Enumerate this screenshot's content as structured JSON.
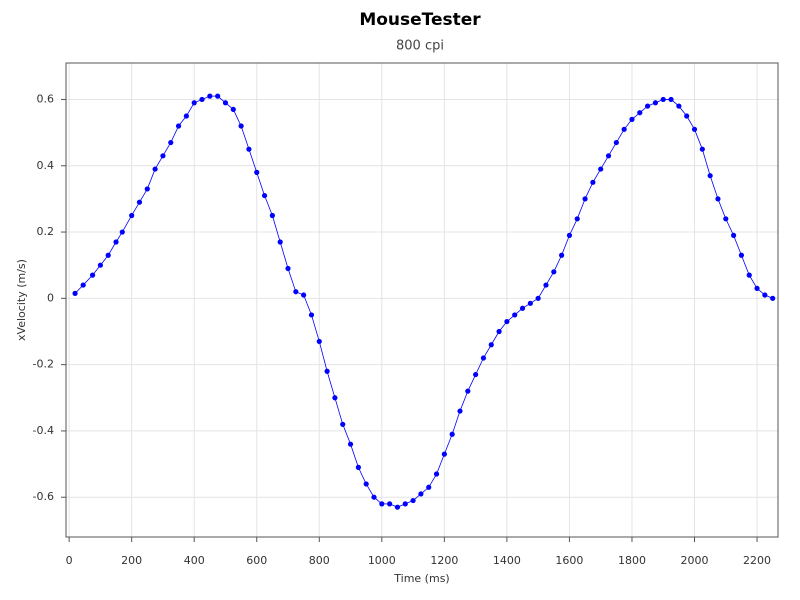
{
  "chart_data": {
    "type": "scatter",
    "title": "MouseTester",
    "subtitle": "800 cpi",
    "x_label": "Time (ms)",
    "y_label": "xVelocity (m/s)",
    "color": "#0000ff",
    "grid": true,
    "line": true,
    "xlim": [
      -10,
      2267
    ],
    "ylim": [
      -0.72,
      0.71
    ],
    "xticks": [
      0,
      200,
      400,
      600,
      800,
      1000,
      1200,
      1400,
      1600,
      1800,
      2000,
      2200
    ],
    "yticks": [
      -0.6,
      -0.4,
      -0.2,
      0,
      0.2,
      0.4,
      0.6
    ],
    "x": [
      19,
      45,
      75,
      100,
      125,
      150,
      170,
      200,
      225,
      250,
      275,
      300,
      325,
      350,
      375,
      400,
      425,
      450,
      475,
      500,
      525,
      550,
      575,
      600,
      625,
      650,
      675,
      700,
      725,
      750,
      775,
      800,
      825,
      850,
      875,
      900,
      925,
      950,
      975,
      1000,
      1025,
      1050,
      1075,
      1100,
      1125,
      1150,
      1175,
      1200,
      1225,
      1250,
      1275,
      1300,
      1325,
      1350,
      1375,
      1400,
      1425,
      1450,
      1475,
      1500,
      1525,
      1550,
      1575,
      1600,
      1625,
      1650,
      1675,
      1700,
      1725,
      1750,
      1775,
      1800,
      1825,
      1850,
      1875,
      1900,
      1925,
      1950,
      1975,
      2000,
      2025,
      2050,
      2075,
      2100,
      2125,
      2150,
      2175,
      2200,
      2225,
      2250
    ],
    "values": [
      0.015,
      0.04,
      0.07,
      0.1,
      0.13,
      0.17,
      0.2,
      0.25,
      0.29,
      0.33,
      0.39,
      0.43,
      0.47,
      0.52,
      0.55,
      0.59,
      0.6,
      0.61,
      0.61,
      0.59,
      0.57,
      0.52,
      0.45,
      0.38,
      0.31,
      0.25,
      0.17,
      0.09,
      0.02,
      0.01,
      -0.05,
      -0.13,
      -0.22,
      -0.3,
      -0.38,
      -0.44,
      -0.51,
      -0.56,
      -0.6,
      -0.62,
      -0.62,
      -0.63,
      -0.62,
      -0.61,
      -0.59,
      -0.57,
      -0.53,
      -0.47,
      -0.41,
      -0.34,
      -0.28,
      -0.23,
      -0.18,
      -0.14,
      -0.1,
      -0.07,
      -0.05,
      -0.03,
      -0.015,
      0.0,
      0.04,
      0.08,
      0.13,
      0.19,
      0.24,
      0.3,
      0.35,
      0.39,
      0.43,
      0.47,
      0.51,
      0.54,
      0.56,
      0.58,
      0.59,
      0.6,
      0.6,
      0.58,
      0.55,
      0.51,
      0.45,
      0.37,
      0.3,
      0.24,
      0.19,
      0.13,
      0.07,
      0.03,
      0.01,
      0.0
    ]
  }
}
